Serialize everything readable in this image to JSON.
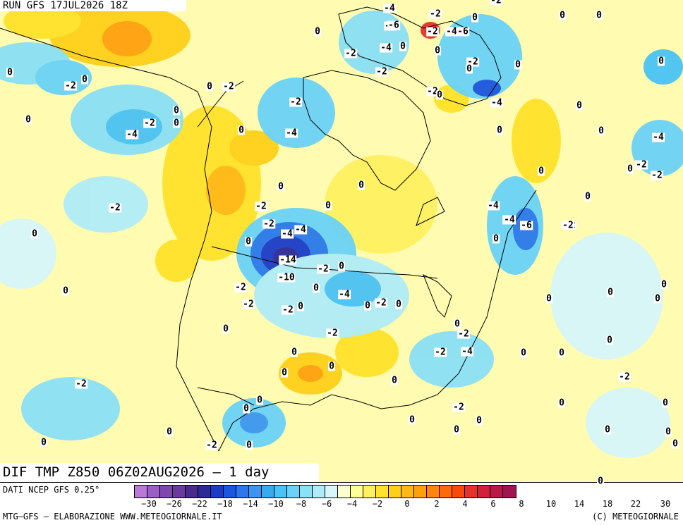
{
  "header": {
    "run": "RUN GFS 17JUL2026 18Z"
  },
  "field": {
    "title": "DIF TMP Z850 06Z02AUG2026 – 1 day"
  },
  "footer": {
    "source": "DATI NCEP GFS 0.25°",
    "credit_left": "MTG–GFS – ELABORAZIONE WWW.METEOGIORNALE.IT",
    "credit_right": "(C) METEOGIORNALE"
  },
  "legend": {
    "colors": [
      "#b87ad6",
      "#9a5ec4",
      "#8048ae",
      "#6a3a9e",
      "#4a2a8a",
      "#2c2a96",
      "#1a3cc8",
      "#1a56e0",
      "#2a78ec",
      "#3a96f2",
      "#3aaaf0",
      "#4ac2f4",
      "#6ad2f6",
      "#8ae0f6",
      "#b0ecf8",
      "#d6f6fa",
      "#ffffd2",
      "#ffff9a",
      "#fff060",
      "#ffe22a",
      "#ffd01a",
      "#ffb812",
      "#ffa00c",
      "#ff860a",
      "#ff6a08",
      "#f84a0a",
      "#e8302a",
      "#d0203a",
      "#b81a48",
      "#a01450"
    ],
    "ticks": [
      "−30",
      "−26",
      "−22",
      "−18",
      "−14",
      "−10",
      "−8",
      "−6",
      "−4",
      "−2",
      "0",
      "2",
      "4",
      "6",
      "8",
      "10",
      "14",
      "18",
      "22",
      "30"
    ]
  },
  "contour_labels": [
    "-4",
    "-2",
    "0",
    "-4",
    "-6",
    "-2",
    "-4",
    "-6",
    "0",
    "0",
    "0",
    "-2",
    "-4",
    "0",
    "0",
    "-2",
    "-2",
    "-2",
    "0",
    "0",
    "0",
    "-2",
    "-2",
    "0",
    "0",
    "-2",
    "-4",
    "-2",
    "0",
    "0",
    "0",
    "0",
    "-4",
    "-4",
    "-4",
    "0",
    "0",
    "0",
    "-2",
    "-2",
    "0",
    "0",
    "-4",
    "-2",
    "-6",
    "-2",
    "0",
    "0",
    "-6",
    "-4",
    "-4",
    "-14",
    "-10",
    "-2",
    "0",
    "-2",
    "-4",
    "0",
    "-2",
    "0",
    "-2",
    "-2",
    "0",
    "0",
    "0",
    "-2",
    "-2",
    "-4",
    "0",
    "-2",
    "0",
    "0",
    "0",
    "-2",
    "0",
    "0",
    "-2",
    "0",
    "0",
    "0",
    "0",
    "0",
    "0",
    "0",
    "-2",
    "-2",
    "0",
    "0",
    "0",
    "0",
    "0",
    "0",
    "0",
    "0",
    "0",
    "0",
    "0",
    "-2",
    "-2",
    "-2",
    "0",
    "-2",
    "-4",
    "-6",
    "-2",
    "0",
    "0",
    "0",
    "0",
    "0",
    "0",
    "0",
    "0",
    "0"
  ]
}
